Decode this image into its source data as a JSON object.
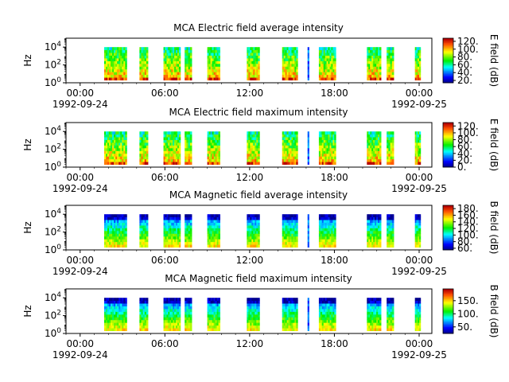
{
  "chart_data": [
    {
      "type": "heatmap",
      "title": "MCA  Electric field average intensity",
      "ylabel": "Hz",
      "y_scale": "log",
      "ylim": [
        1,
        100000
      ],
      "yticks": [
        {
          "base": "10",
          "exp": "0"
        },
        {
          "base": "10",
          "exp": "2"
        },
        {
          "base": "10",
          "exp": "4"
        }
      ],
      "x_ticks": [
        {
          "line1": "00:00",
          "line2": "1992-09-24",
          "hour": 0
        },
        {
          "line1": "06:00",
          "line2": "",
          "hour": 6
        },
        {
          "line1": "12:00",
          "line2": "",
          "hour": 12
        },
        {
          "line1": "18:00",
          "line2": "",
          "hour": 18
        },
        {
          "line1": "00:00",
          "line2": "1992-09-25",
          "hour": 24
        }
      ],
      "xlim_hours": [
        -1.0,
        24.9
      ],
      "colorbar_label": "E field (dB)",
      "colorbar_ticks": [
        "20.",
        "40.",
        "60.",
        "80.",
        "100.",
        "120."
      ],
      "colorbar_range": [
        14,
        128
      ],
      "freq_range_log10": [
        0.3,
        4.0
      ],
      "data_intervals_hours": [
        [
          1.7,
          3.3
        ],
        [
          4.2,
          4.8
        ],
        [
          5.9,
          7.1
        ],
        [
          7.4,
          7.9
        ],
        [
          9.0,
          9.9
        ],
        [
          11.8,
          12.7
        ],
        [
          14.3,
          15.4
        ],
        [
          16.1,
          16.2
        ],
        [
          16.9,
          18.1
        ],
        [
          20.3,
          21.3
        ],
        [
          21.7,
          22.2
        ],
        [
          23.7,
          24.1
        ]
      ],
      "level_profile": "electric"
    },
    {
      "type": "heatmap",
      "title": "MCA  Electric field maximum intensity",
      "ylabel": "Hz",
      "y_scale": "log",
      "ylim": [
        1,
        100000
      ],
      "yticks": [
        {
          "base": "10",
          "exp": "0"
        },
        {
          "base": "10",
          "exp": "2"
        },
        {
          "base": "10",
          "exp": "4"
        }
      ],
      "x_ticks": [
        {
          "line1": "00:00",
          "line2": "1992-09-24",
          "hour": 0
        },
        {
          "line1": "06:00",
          "line2": "",
          "hour": 6
        },
        {
          "line1": "12:00",
          "line2": "",
          "hour": 12
        },
        {
          "line1": "18:00",
          "line2": "",
          "hour": 18
        },
        {
          "line1": "00:00",
          "line2": "1992-09-25",
          "hour": 24
        }
      ],
      "xlim_hours": [
        -1.0,
        24.9
      ],
      "colorbar_label": "E field (dB)",
      "colorbar_ticks": [
        "0.",
        "20.",
        "40.",
        "60.",
        "80.",
        "100.",
        "120."
      ],
      "colorbar_range": [
        0,
        130
      ],
      "freq_range_log10": [
        0.3,
        4.0
      ],
      "data_intervals_hours": [
        [
          1.7,
          3.3
        ],
        [
          4.2,
          4.8
        ],
        [
          5.9,
          7.1
        ],
        [
          7.4,
          7.9
        ],
        [
          9.0,
          9.9
        ],
        [
          11.8,
          12.7
        ],
        [
          14.3,
          15.4
        ],
        [
          16.1,
          16.2
        ],
        [
          16.9,
          18.1
        ],
        [
          20.3,
          21.3
        ],
        [
          21.7,
          22.2
        ],
        [
          23.7,
          24.1
        ]
      ],
      "level_profile": "electric"
    },
    {
      "type": "heatmap",
      "title": "MCA  Magnetic field average intensity",
      "ylabel": "Hz",
      "y_scale": "log",
      "ylim": [
        1,
        100000
      ],
      "yticks": [
        {
          "base": "10",
          "exp": "0"
        },
        {
          "base": "10",
          "exp": "2"
        },
        {
          "base": "10",
          "exp": "4"
        }
      ],
      "x_ticks": [
        {
          "line1": "00:00",
          "line2": "1992-09-24",
          "hour": 0
        },
        {
          "line1": "06:00",
          "line2": "",
          "hour": 6
        },
        {
          "line1": "12:00",
          "line2": "",
          "hour": 12
        },
        {
          "line1": "18:00",
          "line2": "",
          "hour": 18
        },
        {
          "line1": "00:00",
          "line2": "1992-09-25",
          "hour": 24
        }
      ],
      "xlim_hours": [
        -1.0,
        24.9
      ],
      "colorbar_label": "B field (dB)",
      "colorbar_ticks": [
        "60.",
        "80.",
        "100.",
        "120.",
        "140.",
        "160.",
        "180."
      ],
      "colorbar_range": [
        55,
        190
      ],
      "freq_range_log10": [
        0.3,
        4.0
      ],
      "data_intervals_hours": [
        [
          1.7,
          3.3
        ],
        [
          4.2,
          4.8
        ],
        [
          5.9,
          7.1
        ],
        [
          7.4,
          7.9
        ],
        [
          9.0,
          9.9
        ],
        [
          11.8,
          12.7
        ],
        [
          14.3,
          15.4
        ],
        [
          16.1,
          16.2
        ],
        [
          16.9,
          18.1
        ],
        [
          20.3,
          21.3
        ],
        [
          21.7,
          22.2
        ],
        [
          23.7,
          24.1
        ]
      ],
      "level_profile": "magnetic"
    },
    {
      "type": "heatmap",
      "title": "MCA  Magnetic field maximum intensity",
      "ylabel": "Hz",
      "y_scale": "log",
      "ylim": [
        1,
        100000
      ],
      "yticks": [
        {
          "base": "10",
          "exp": "0"
        },
        {
          "base": "10",
          "exp": "2"
        },
        {
          "base": "10",
          "exp": "4"
        }
      ],
      "x_ticks": [
        {
          "line1": "00:00",
          "line2": "1992-09-24",
          "hour": 0
        },
        {
          "line1": "06:00",
          "line2": "",
          "hour": 6
        },
        {
          "line1": "12:00",
          "line2": "",
          "hour": 12
        },
        {
          "line1": "18:00",
          "line2": "",
          "hour": 18
        },
        {
          "line1": "00:00",
          "line2": "1992-09-25",
          "hour": 24
        }
      ],
      "xlim_hours": [
        -1.0,
        24.9
      ],
      "colorbar_label": "B field (dB)",
      "colorbar_ticks": [
        "50.",
        "100.",
        "150."
      ],
      "colorbar_range": [
        25,
        195
      ],
      "freq_range_log10": [
        0.3,
        4.0
      ],
      "data_intervals_hours": [
        [
          1.7,
          3.3
        ],
        [
          4.2,
          4.8
        ],
        [
          5.9,
          7.1
        ],
        [
          7.4,
          7.9
        ],
        [
          9.0,
          9.9
        ],
        [
          11.8,
          12.7
        ],
        [
          14.3,
          15.4
        ],
        [
          16.1,
          16.2
        ],
        [
          16.9,
          18.1
        ],
        [
          20.3,
          21.3
        ],
        [
          21.7,
          22.2
        ],
        [
          23.7,
          24.1
        ]
      ],
      "level_profile": "magnetic"
    }
  ],
  "colormap": "jet-like (blue-cyan-green-yellow-red)"
}
